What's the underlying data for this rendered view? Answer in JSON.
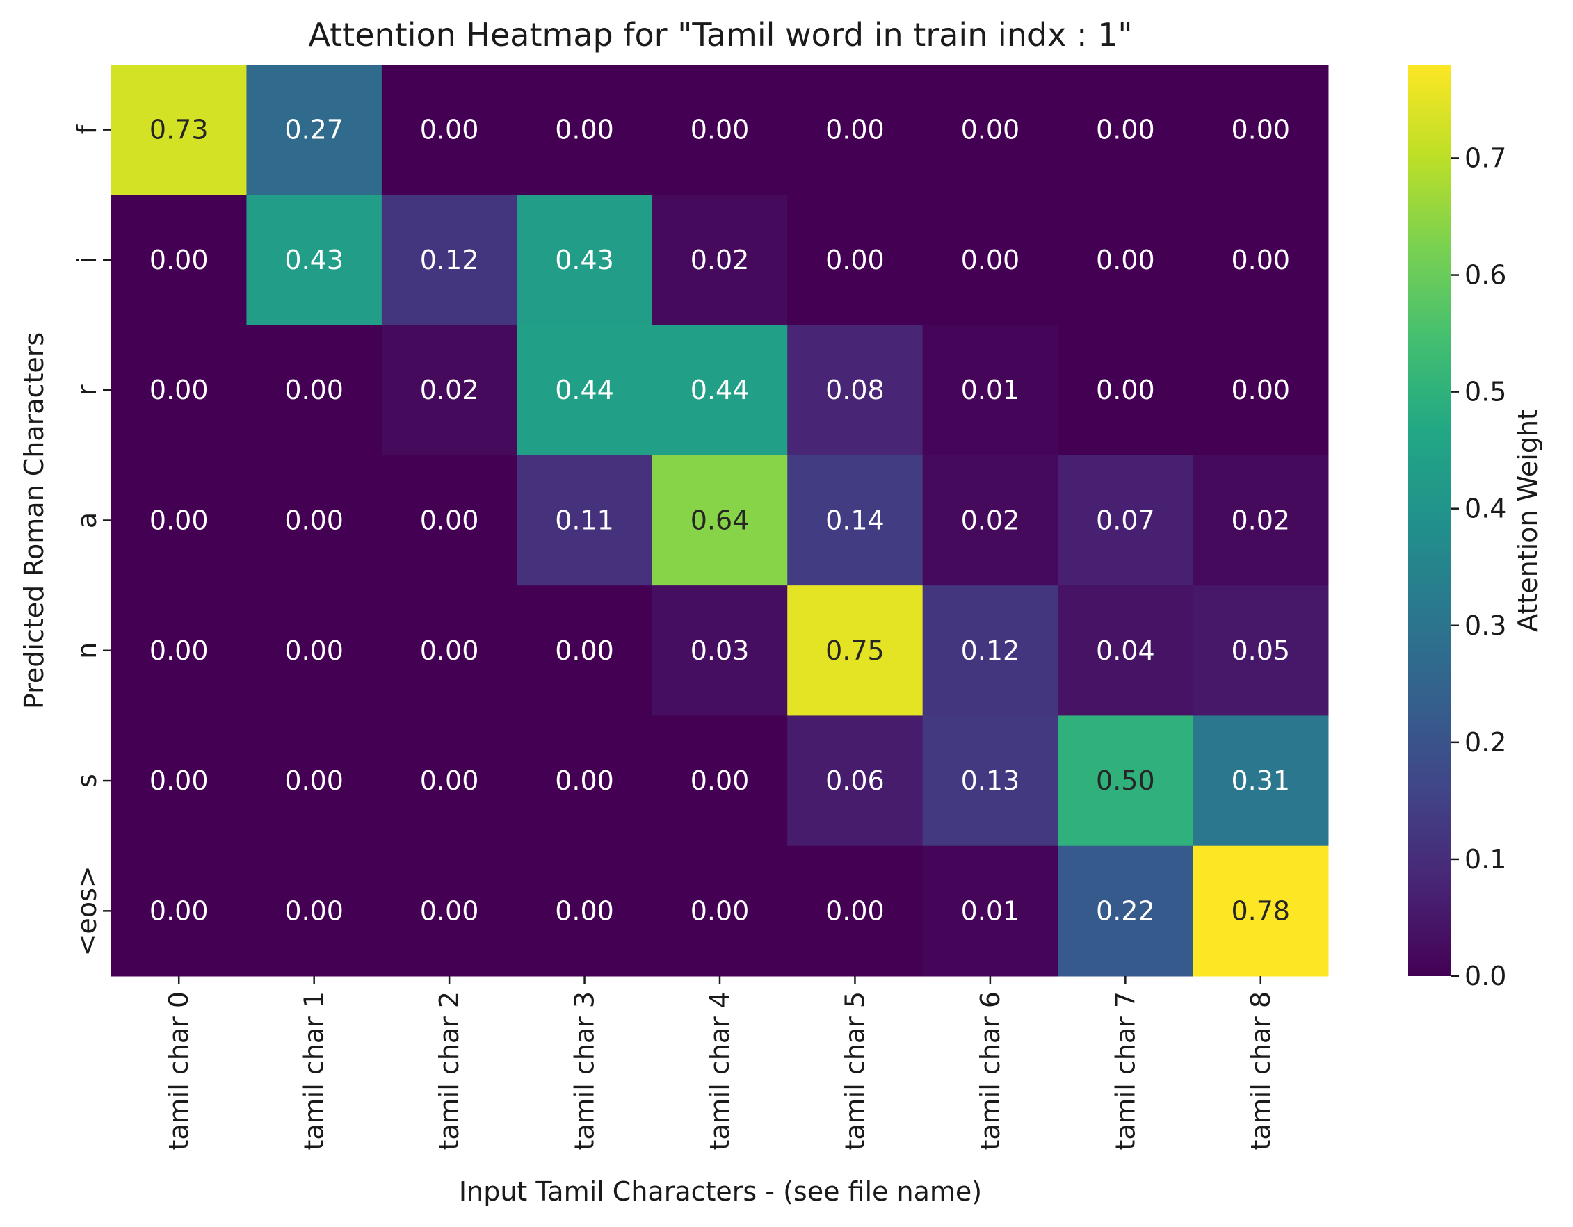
{
  "chart_data": {
    "type": "heatmap",
    "title": "Attention Heatmap for \"Tamil word  in train indx :  1\"",
    "xlabel": "Input Tamil Characters - (see file name)",
    "ylabel": "Predicted Roman Characters",
    "x_categories": [
      "tamil char 0",
      "tamil char 1",
      "tamil char 2",
      "tamil char 3",
      "tamil char 4",
      "tamil char 5",
      "tamil char 6",
      "tamil char 7",
      "tamil char 8"
    ],
    "y_categories": [
      "f",
      "i",
      "r",
      "a",
      "n",
      "s",
      "<eos>"
    ],
    "values": [
      [
        0.73,
        0.27,
        0.0,
        0.0,
        0.0,
        0.0,
        0.0,
        0.0,
        0.0
      ],
      [
        0.0,
        0.43,
        0.12,
        0.43,
        0.02,
        0.0,
        0.0,
        0.0,
        0.0
      ],
      [
        0.0,
        0.0,
        0.02,
        0.44,
        0.44,
        0.08,
        0.01,
        0.0,
        0.0
      ],
      [
        0.0,
        0.0,
        0.0,
        0.11,
        0.64,
        0.14,
        0.02,
        0.07,
        0.02
      ],
      [
        0.0,
        0.0,
        0.0,
        0.0,
        0.03,
        0.75,
        0.12,
        0.04,
        0.05
      ],
      [
        0.0,
        0.0,
        0.0,
        0.0,
        0.0,
        0.06,
        0.13,
        0.5,
        0.31
      ],
      [
        0.0,
        0.0,
        0.0,
        0.0,
        0.0,
        0.0,
        0.01,
        0.22,
        0.78
      ]
    ],
    "value_labels": [
      [
        "0.73",
        "0.27",
        "0.00",
        "0.00",
        "0.00",
        "0.00",
        "0.00",
        "0.00",
        "0.00"
      ],
      [
        "0.00",
        "0.43",
        "0.12",
        "0.43",
        "0.02",
        "0.00",
        "0.00",
        "0.00",
        "0.00"
      ],
      [
        "0.00",
        "0.00",
        "0.02",
        "0.44",
        "0.44",
        "0.08",
        "0.01",
        "0.00",
        "0.00"
      ],
      [
        "0.00",
        "0.00",
        "0.00",
        "0.11",
        "0.64",
        "0.14",
        "0.02",
        "0.07",
        "0.02"
      ],
      [
        "0.00",
        "0.00",
        "0.00",
        "0.00",
        "0.03",
        "0.75",
        "0.12",
        "0.04",
        "0.05"
      ],
      [
        "0.00",
        "0.00",
        "0.00",
        "0.00",
        "0.00",
        "0.06",
        "0.13",
        "0.50",
        "0.31"
      ],
      [
        "0.00",
        "0.00",
        "0.00",
        "0.00",
        "0.00",
        "0.00",
        "0.01",
        "0.22",
        "0.78"
      ]
    ],
    "colormap": "viridis",
    "vmin": 0.0,
    "vmax": 0.78,
    "colorbar": {
      "label": "Attention Weight",
      "ticks": [
        0.0,
        0.1,
        0.2,
        0.3,
        0.4,
        0.5,
        0.6,
        0.7
      ],
      "tick_labels": [
        "0.0",
        "0.1",
        "0.2",
        "0.3",
        "0.4",
        "0.5",
        "0.6",
        "0.7"
      ]
    },
    "annotation_colors": {
      "light": "#ffffff",
      "dark": "#262626"
    }
  }
}
